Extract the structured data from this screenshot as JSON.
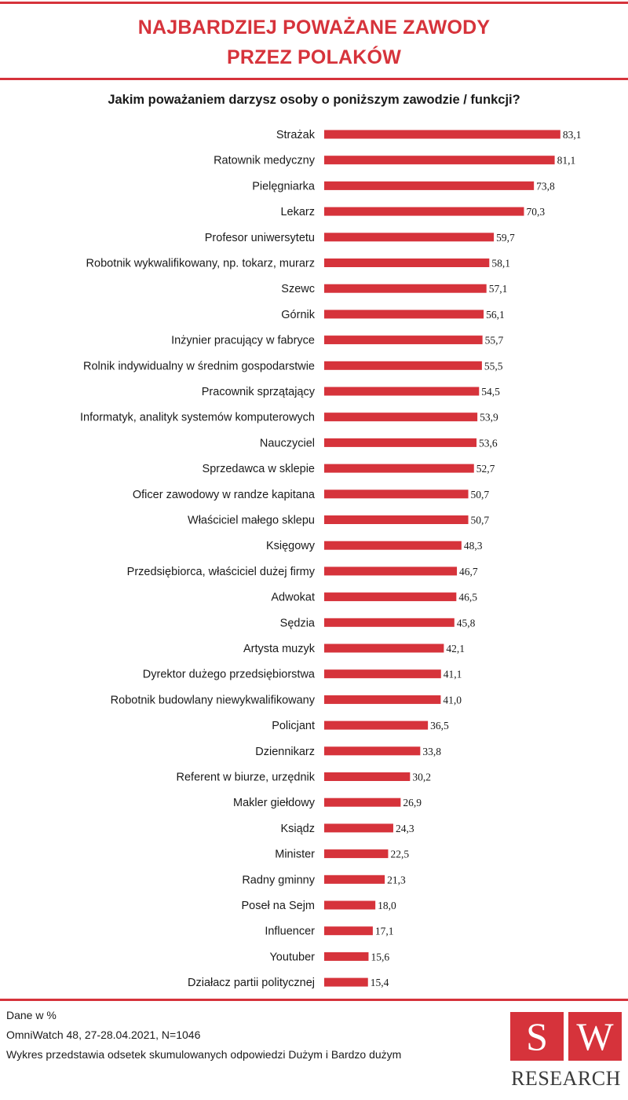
{
  "header": {
    "title_line1": "NAJBARDZIEJ POWAŻANE ZAWODY",
    "title_line2": "PRZEZ POLAKÓW"
  },
  "chart_data": {
    "type": "bar",
    "orientation": "horizontal",
    "title": "NAJBARDZIEJ POWAŻANE ZAWODY PRZEZ POLAKÓW",
    "subtitle": "Jakim poważaniem darzysz osoby o poniższym zawodzie / funkcji?",
    "bar_color": "#d6333b",
    "grid": false,
    "xlim": [
      0,
      100
    ],
    "categories": [
      "Strażak",
      "Ratownik medyczny",
      "Pielęgniarka",
      "Lekarz",
      "Profesor uniwersytetu",
      "Robotnik wykwalifikowany, np. tokarz, murarz",
      "Szewc",
      "Górnik",
      "Inżynier pracujący w fabryce",
      "Rolnik indywidualny w średnim gospodarstwie",
      "Pracownik sprzątający",
      "Informatyk, analityk systemów komputerowych",
      "Nauczyciel",
      "Sprzedawca w sklepie",
      "Oficer zawodowy w randze kapitana",
      "Właściciel małego sklepu",
      "Księgowy",
      "Przedsiębiorca, właściciel dużej firmy",
      "Adwokat",
      "Sędzia",
      "Artysta muzyk",
      "Dyrektor dużego przedsiębiorstwa",
      "Robotnik budowlany niewykwalifikowany",
      "Policjant",
      "Dziennikarz",
      "Referent w biurze, urzędnik",
      "Makler giełdowy",
      "Ksiądz",
      "Minister",
      "Radny gminny",
      "Poseł na Sejm",
      "Influencer",
      "Youtuber",
      "Działacz partii politycznej"
    ],
    "values": [
      83.1,
      81.1,
      73.8,
      70.3,
      59.7,
      58.1,
      57.1,
      56.1,
      55.7,
      55.5,
      54.5,
      53.9,
      53.6,
      52.7,
      50.7,
      50.7,
      48.3,
      46.7,
      46.5,
      45.8,
      42.1,
      41.1,
      41.0,
      36.5,
      33.8,
      30.2,
      26.9,
      24.3,
      22.5,
      21.3,
      18.0,
      17.1,
      15.6,
      15.4
    ],
    "value_labels": [
      "83,1",
      "81,1",
      "73,8",
      "70,3",
      "59,7",
      "58,1",
      "57,1",
      "56,1",
      "55,7",
      "55,5",
      "54,5",
      "53,9",
      "53,6",
      "52,7",
      "50,7",
      "50,7",
      "48,3",
      "46,7",
      "46,5",
      "45,8",
      "42,1",
      "41,1",
      "41,0",
      "36,5",
      "33,8",
      "30,2",
      "26,9",
      "24,3",
      "22,5",
      "21,3",
      "18,0",
      "17,1",
      "15,6",
      "15,4"
    ]
  },
  "footer": {
    "line1": "Dane w %",
    "line2": "OmniWatch 48, 27-28.04.2021, N=1046",
    "line3": "Wykres przedstawia odsetek skumulowanych odpowiedzi Dużym i Bardzo dużym"
  },
  "logo": {
    "letter_left": "S",
    "letter_right": "W",
    "word": "RESEARCH"
  }
}
